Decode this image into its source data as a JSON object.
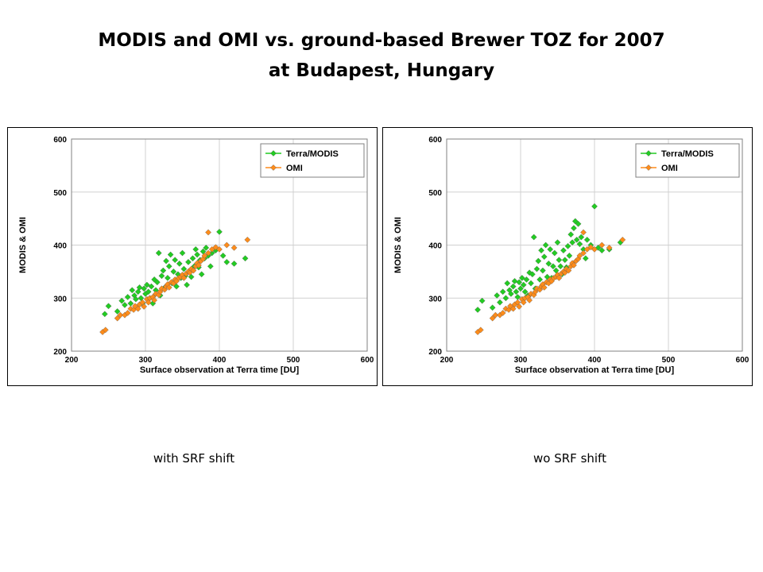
{
  "title": {
    "line1": "MODIS and OMI vs. ground-based Brewer TOZ for  2007",
    "line2": "at Budapest, Hungary"
  },
  "colors": {
    "modis": "#22cc22",
    "omi": "#ff8c1a",
    "grid": "#d0d0d0"
  },
  "chart_data": [
    {
      "type": "scatter",
      "caption": "with SRF shift",
      "xlabel": "Surface observation at Terra time [DU]",
      "ylabel": "MODIS & OMI",
      "xlim": [
        200,
        600
      ],
      "ylim": [
        200,
        600
      ],
      "xticks": [
        200,
        300,
        400,
        500,
        600
      ],
      "yticks": [
        200,
        300,
        400,
        500,
        600
      ],
      "grid": true,
      "legend": "top-right",
      "series": [
        {
          "name": "Terra/MODIS",
          "points": [
            [
              245,
              270
            ],
            [
              250,
              285
            ],
            [
              262,
              275
            ],
            [
              268,
              295
            ],
            [
              272,
              287
            ],
            [
              276,
              302
            ],
            [
              280,
              290
            ],
            [
              282,
              315
            ],
            [
              285,
              305
            ],
            [
              287,
              298
            ],
            [
              290,
              312
            ],
            [
              292,
              320
            ],
            [
              294,
              300
            ],
            [
              296,
              290
            ],
            [
              298,
              318
            ],
            [
              300,
              308
            ],
            [
              302,
              325
            ],
            [
              304,
              312
            ],
            [
              306,
              300
            ],
            [
              308,
              322
            ],
            [
              310,
              290
            ],
            [
              312,
              335
            ],
            [
              314,
              315
            ],
            [
              316,
              330
            ],
            [
              318,
              385
            ],
            [
              320,
              305
            ],
            [
              322,
              342
            ],
            [
              324,
              352
            ],
            [
              326,
              320
            ],
            [
              328,
              370
            ],
            [
              330,
              338
            ],
            [
              332,
              360
            ],
            [
              334,
              382
            ],
            [
              336,
              328
            ],
            [
              338,
              350
            ],
            [
              340,
              372
            ],
            [
              342,
              322
            ],
            [
              344,
              345
            ],
            [
              346,
              365
            ],
            [
              348,
              338
            ],
            [
              350,
              385
            ],
            [
              352,
              355
            ],
            [
              354,
              342
            ],
            [
              356,
              325
            ],
            [
              358,
              368
            ],
            [
              360,
              352
            ],
            [
              362,
              340
            ],
            [
              364,
              375
            ],
            [
              366,
              360
            ],
            [
              368,
              392
            ],
            [
              370,
              382
            ],
            [
              372,
              358
            ],
            [
              374,
              372
            ],
            [
              376,
              345
            ],
            [
              378,
              388
            ],
            [
              380,
              375
            ],
            [
              382,
              395
            ],
            [
              385,
              380
            ],
            [
              388,
              360
            ],
            [
              390,
              385
            ],
            [
              395,
              390
            ],
            [
              400,
              425
            ],
            [
              405,
              380
            ],
            [
              410,
              368
            ],
            [
              420,
              365
            ],
            [
              435,
              375
            ]
          ]
        },
        {
          "name": "OMI",
          "points": [
            [
              242,
              236
            ],
            [
              246,
              240
            ],
            [
              262,
              262
            ],
            [
              266,
              268
            ],
            [
              272,
              268
            ],
            [
              276,
              272
            ],
            [
              280,
              280
            ],
            [
              284,
              278
            ],
            [
              286,
              285
            ],
            [
              290,
              280
            ],
            [
              292,
              288
            ],
            [
              296,
              292
            ],
            [
              298,
              284
            ],
            [
              302,
              298
            ],
            [
              304,
              292
            ],
            [
              306,
              300
            ],
            [
              310,
              302
            ],
            [
              312,
              296
            ],
            [
              314,
              308
            ],
            [
              318,
              306
            ],
            [
              320,
              312
            ],
            [
              322,
              318
            ],
            [
              326,
              316
            ],
            [
              328,
              322
            ],
            [
              330,
              326
            ],
            [
              332,
              320
            ],
            [
              335,
              330
            ],
            [
              338,
              328
            ],
            [
              340,
              335
            ],
            [
              342,
              332
            ],
            [
              345,
              338
            ],
            [
              348,
              340
            ],
            [
              350,
              344
            ],
            [
              352,
              338
            ],
            [
              355,
              346
            ],
            [
              358,
              350
            ],
            [
              360,
              348
            ],
            [
              362,
              355
            ],
            [
              365,
              352
            ],
            [
              368,
              360
            ],
            [
              370,
              366
            ],
            [
              372,
              362
            ],
            [
              375,
              370
            ],
            [
              378,
              374
            ],
            [
              380,
              380
            ],
            [
              385,
              385
            ],
            [
              390,
              392
            ],
            [
              395,
              396
            ],
            [
              400,
              392
            ],
            [
              410,
              400
            ],
            [
              420,
              395
            ],
            [
              385,
              424
            ],
            [
              438,
              410
            ]
          ]
        }
      ]
    },
    {
      "type": "scatter",
      "caption": "wo SRF shift",
      "xlabel": "Surface observation at Terra time [DU]",
      "ylabel": "MODIS & OMI",
      "xlim": [
        200,
        600
      ],
      "ylim": [
        200,
        600
      ],
      "xticks": [
        200,
        300,
        400,
        500,
        600
      ],
      "yticks": [
        200,
        300,
        400,
        500,
        600
      ],
      "grid": true,
      "legend": "top-right",
      "series": [
        {
          "name": "Terra/MODIS",
          "points": [
            [
              242,
              278
            ],
            [
              248,
              295
            ],
            [
              262,
              282
            ],
            [
              268,
              305
            ],
            [
              272,
              292
            ],
            [
              276,
              312
            ],
            [
              280,
              300
            ],
            [
              282,
              328
            ],
            [
              285,
              315
            ],
            [
              287,
              308
            ],
            [
              290,
              322
            ],
            [
              292,
              332
            ],
            [
              294,
              312
            ],
            [
              296,
              302
            ],
            [
              298,
              330
            ],
            [
              300,
              318
            ],
            [
              302,
              338
            ],
            [
              304,
              325
            ],
            [
              306,
              312
            ],
            [
              308,
              335
            ],
            [
              310,
              305
            ],
            [
              312,
              348
            ],
            [
              314,
              328
            ],
            [
              316,
              345
            ],
            [
              318,
              415
            ],
            [
              320,
              318
            ],
            [
              322,
              355
            ],
            [
              324,
              370
            ],
            [
              326,
              335
            ],
            [
              328,
              390
            ],
            [
              330,
              352
            ],
            [
              332,
              378
            ],
            [
              334,
              400
            ],
            [
              336,
              340
            ],
            [
              338,
              365
            ],
            [
              340,
              392
            ],
            [
              342,
              338
            ],
            [
              344,
              360
            ],
            [
              346,
              385
            ],
            [
              348,
              352
            ],
            [
              350,
              405
            ],
            [
              352,
              372
            ],
            [
              354,
              360
            ],
            [
              356,
              345
            ],
            [
              358,
              390
            ],
            [
              360,
              372
            ],
            [
              362,
              358
            ],
            [
              364,
              398
            ],
            [
              366,
              380
            ],
            [
              368,
              420
            ],
            [
              370,
              405
            ],
            [
              372,
              432
            ],
            [
              374,
              445
            ],
            [
              376,
              410
            ],
            [
              378,
              440
            ],
            [
              380,
              402
            ],
            [
              382,
              415
            ],
            [
              385,
              392
            ],
            [
              388,
              375
            ],
            [
              390,
              410
            ],
            [
              395,
              400
            ],
            [
              400,
              473
            ],
            [
              405,
              395
            ],
            [
              410,
              390
            ],
            [
              420,
              392
            ],
            [
              435,
              405
            ]
          ]
        },
        {
          "name": "OMI",
          "points": [
            [
              242,
              236
            ],
            [
              246,
              240
            ],
            [
              262,
              262
            ],
            [
              266,
              268
            ],
            [
              272,
              268
            ],
            [
              276,
              272
            ],
            [
              280,
              280
            ],
            [
              284,
              278
            ],
            [
              286,
              285
            ],
            [
              290,
              280
            ],
            [
              292,
              288
            ],
            [
              296,
              292
            ],
            [
              298,
              284
            ],
            [
              302,
              298
            ],
            [
              304,
              292
            ],
            [
              306,
              300
            ],
            [
              310,
              302
            ],
            [
              312,
              296
            ],
            [
              314,
              308
            ],
            [
              318,
              306
            ],
            [
              320,
              312
            ],
            [
              322,
              318
            ],
            [
              326,
              316
            ],
            [
              328,
              322
            ],
            [
              330,
              326
            ],
            [
              332,
              320
            ],
            [
              335,
              330
            ],
            [
              338,
              328
            ],
            [
              340,
              335
            ],
            [
              342,
              332
            ],
            [
              345,
              338
            ],
            [
              348,
              340
            ],
            [
              350,
              344
            ],
            [
              352,
              338
            ],
            [
              355,
              346
            ],
            [
              358,
              350
            ],
            [
              360,
              348
            ],
            [
              362,
              355
            ],
            [
              365,
              352
            ],
            [
              368,
              360
            ],
            [
              370,
              366
            ],
            [
              372,
              362
            ],
            [
              375,
              370
            ],
            [
              378,
              374
            ],
            [
              380,
              380
            ],
            [
              385,
              385
            ],
            [
              390,
              392
            ],
            [
              395,
              396
            ],
            [
              400,
              392
            ],
            [
              410,
              400
            ],
            [
              420,
              395
            ],
            [
              385,
              424
            ],
            [
              438,
              410
            ]
          ]
        }
      ]
    }
  ]
}
